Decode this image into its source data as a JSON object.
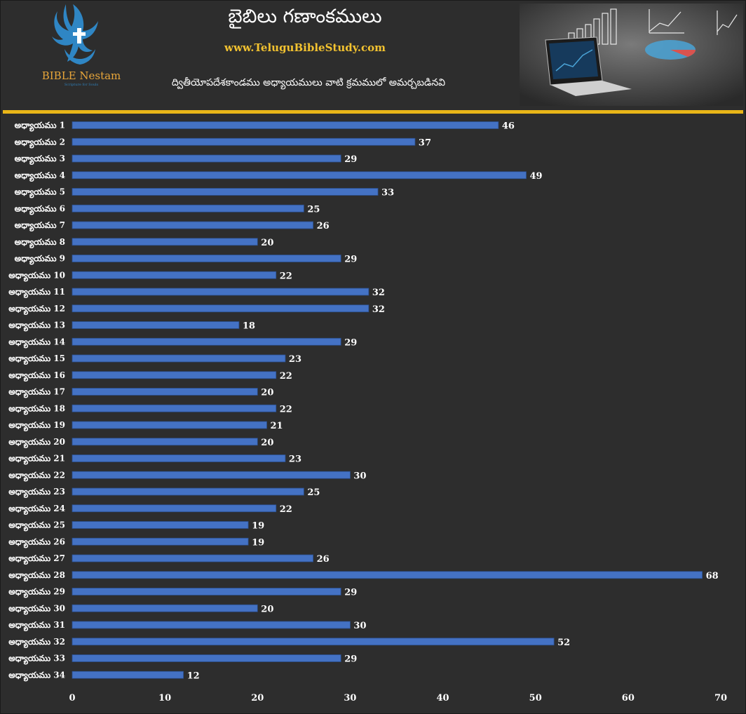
{
  "header": {
    "title": "బైబిలు గణాంకములు",
    "website": "www.TeluguBibleStudy.com",
    "subtitle": "ద్వితీయోపదేశకాండము అధ్యాయములు వాటి క్రమములో అమర్చబడినవి",
    "brand": "BIBLE Nestam",
    "tagline": "Scripture for Souls"
  },
  "colors": {
    "background": "#2d2d2d",
    "bar": "#4472c4",
    "accent": "#e9b618",
    "label": "#ffffff"
  },
  "chart_data": {
    "type": "bar",
    "orientation": "horizontal",
    "categories": [
      "అధ్యాయము 1",
      "అధ్యాయము 2",
      "అధ్యాయము 3",
      "అధ్యాయము 4",
      "అధ్యాయము 5",
      "అధ్యాయము 6",
      "అధ్యాయము 7",
      "అధ్యాయము 8",
      "అధ్యాయము 9",
      "అధ్యాయము 10",
      "అధ్యాయము 11",
      "అధ్యాయము 12",
      "అధ్యాయము 13",
      "అధ్యాయము 14",
      "అధ్యాయము 15",
      "అధ్యాయము 16",
      "అధ్యాయము 17",
      "అధ్యాయము 18",
      "అధ్యాయము 19",
      "అధ్యాయము 20",
      "అధ్యాయము 21",
      "అధ్యాయము 22",
      "అధ్యాయము 23",
      "అధ్యాయము 24",
      "అధ్యాయము 25",
      "అధ్యాయము 26",
      "అధ్యాయము 27",
      "అధ్యాయము 28",
      "అధ్యాయము 29",
      "అధ్యాయము 30",
      "అధ్యాయము 31",
      "అధ్యాయము 32",
      "అధ్యాయము 33",
      "అధ్యాయము 34"
    ],
    "values": [
      46,
      37,
      29,
      49,
      33,
      25,
      26,
      20,
      29,
      22,
      32,
      32,
      18,
      29,
      23,
      22,
      20,
      22,
      21,
      20,
      23,
      30,
      25,
      22,
      19,
      19,
      26,
      68,
      29,
      20,
      30,
      52,
      29,
      12
    ],
    "xlim": [
      0,
      70
    ],
    "xticks": [
      0,
      10,
      20,
      30,
      40,
      50,
      60,
      70
    ],
    "data_labels": true,
    "grid": false,
    "legend": "none"
  }
}
